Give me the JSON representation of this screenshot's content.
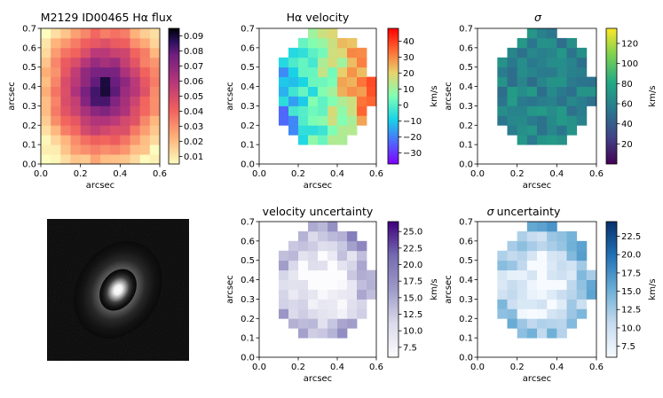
{
  "chart_data": [
    {
      "type": "heatmap",
      "id": "flux",
      "title": "M2129 ID00465 Hα flux",
      "title_sym": "",
      "xlabel": "arcsec",
      "ylabel": "arcsec",
      "xlim": [
        0,
        0.6
      ],
      "ylim": [
        0,
        0.7
      ],
      "xticks": [
        "0.0",
        "0.2",
        "0.4",
        "0.6"
      ],
      "yticks": [
        "0.0",
        "0.1",
        "0.2",
        "0.3",
        "0.4",
        "0.5",
        "0.6",
        "0.7"
      ],
      "colormap": "magma_r",
      "colorbar_range": [
        0.005,
        0.095
      ],
      "colorbar_ticks": [
        "0.01",
        "0.02",
        "0.03",
        "0.04",
        "0.05",
        "0.06",
        "0.07",
        "0.08",
        "0.09"
      ],
      "colorbar_label": "",
      "grid": false
    },
    {
      "type": "heatmap",
      "id": "velocity",
      "title": "Hα velocity",
      "title_sym": "",
      "xlabel": "arcsec",
      "ylabel": "arcsec",
      "xlim": [
        0,
        0.6
      ],
      "ylim": [
        0,
        0.7
      ],
      "xticks": [
        "0.0",
        "0.2",
        "0.4",
        "0.6"
      ],
      "yticks": [
        "0.0",
        "0.1",
        "0.2",
        "0.3",
        "0.4",
        "0.5",
        "0.6",
        "0.7"
      ],
      "colormap": "rainbow",
      "colorbar_range": [
        -37,
        48
      ],
      "colorbar_ticks": [
        "−30",
        "−20",
        "−10",
        "0",
        "10",
        "20",
        "30",
        "40"
      ],
      "colorbar_label": "km/s",
      "grid": false
    },
    {
      "type": "heatmap",
      "id": "sigma",
      "title": "",
      "title_sym": "σ",
      "xlabel": "arcsec",
      "ylabel": "arcsec",
      "xlim": [
        0,
        0.6
      ],
      "ylim": [
        0,
        0.7
      ],
      "xticks": [
        "0.0",
        "0.2",
        "0.4",
        "0.6"
      ],
      "yticks": [
        "0.0",
        "0.1",
        "0.2",
        "0.3",
        "0.4",
        "0.5",
        "0.6",
        "0.7"
      ],
      "colormap": "viridis",
      "colorbar_range": [
        0,
        135
      ],
      "colorbar_ticks": [
        "20",
        "40",
        "60",
        "80",
        "100",
        "120"
      ],
      "colorbar_label": "km/s",
      "grid": false
    },
    {
      "type": "heatmap",
      "id": "image",
      "title": "",
      "title_sym": "",
      "colormap": "gray",
      "description_free": true
    },
    {
      "type": "heatmap",
      "id": "vel_unc",
      "title": "velocity uncertainty",
      "title_sym": "",
      "xlabel": "arcsec",
      "ylabel": "arcsec",
      "xlim": [
        0,
        0.6
      ],
      "ylim": [
        0,
        0.7
      ],
      "xticks": [
        "0.0",
        "0.2",
        "0.4",
        "0.6"
      ],
      "yticks": [
        "0.0",
        "0.1",
        "0.2",
        "0.3",
        "0.4",
        "0.5",
        "0.6",
        "0.7"
      ],
      "colormap": "Purples",
      "colorbar_range": [
        6,
        26.5
      ],
      "colorbar_ticks": [
        "7.5",
        "10.0",
        "12.5",
        "15.0",
        "17.5",
        "20.0",
        "22.5",
        "25.0"
      ],
      "colorbar_label": "km/s",
      "grid": false
    },
    {
      "type": "heatmap",
      "id": "sig_unc",
      "title": "uncertainty",
      "title_sym": "σ",
      "xlabel": "arcsec",
      "ylabel": "arcsec",
      "xlim": [
        0,
        0.6
      ],
      "ylim": [
        0,
        0.7
      ],
      "xticks": [
        "0.0",
        "0.2",
        "0.4",
        "0.6"
      ],
      "yticks": [
        "0.0",
        "0.1",
        "0.2",
        "0.3",
        "0.4",
        "0.5",
        "0.6",
        "0.7"
      ],
      "colormap": "Blues",
      "colorbar_range": [
        6,
        24.5
      ],
      "colorbar_ticks": [
        "7.5",
        "10.0",
        "12.5",
        "15.0",
        "17.5",
        "20.0",
        "22.5"
      ],
      "colorbar_label": "km/s",
      "grid": false
    }
  ]
}
